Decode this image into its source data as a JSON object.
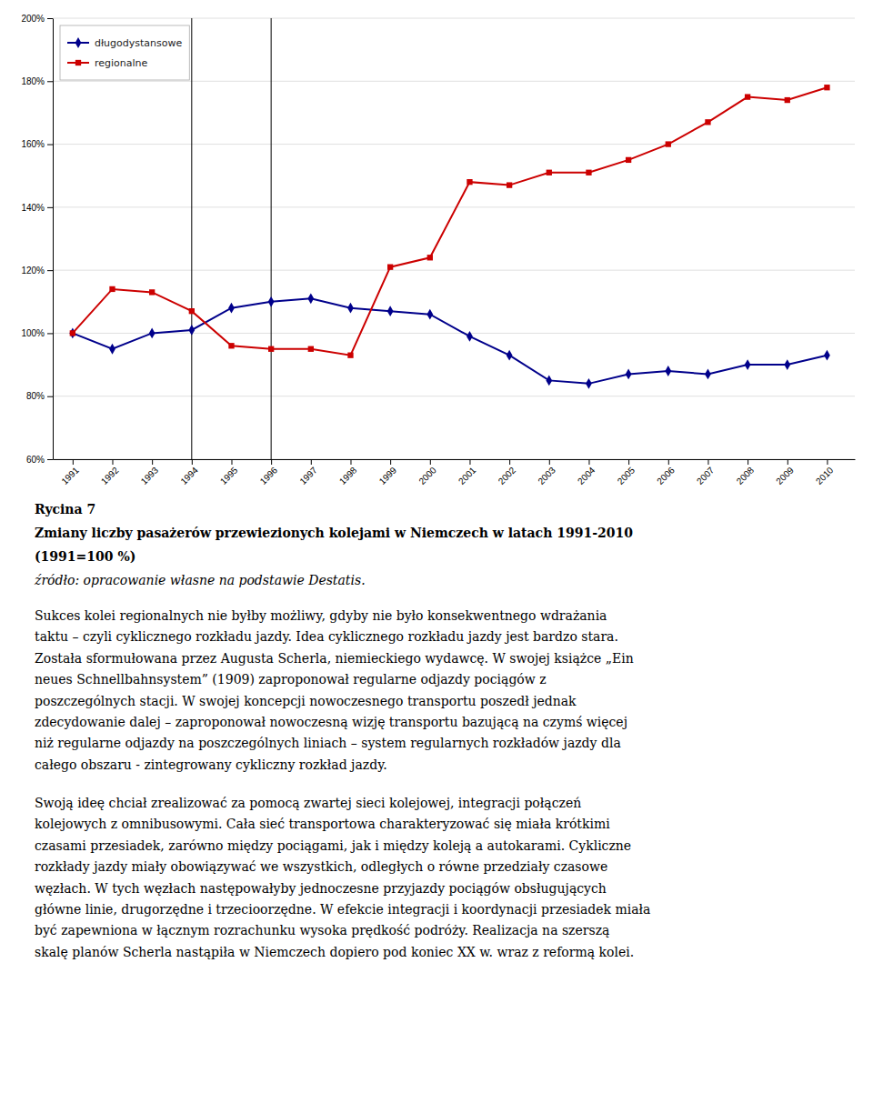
{
  "chart_data": {
    "type": "line",
    "title": "Rycina 7",
    "subtitle": [
      "Zmiany liczby pasażerów przewiezionych kolejami w Niemczech w latach 1991-2010",
      "(1991=100 %)"
    ],
    "x": [
      1991,
      1992,
      1993,
      1994,
      1995,
      1996,
      1997,
      1998,
      1999,
      2000,
      2001,
      2002,
      2003,
      2004,
      2005,
      2006,
      2007,
      2008,
      2009,
      2010
    ],
    "series": [
      {
        "name": "długodystansowe",
        "color": "#00008B",
        "marker": "diamond",
        "values": [
          100,
          95,
          100,
          101,
          108,
          110,
          111,
          108,
          107,
          106,
          99,
          93,
          85,
          84,
          87,
          88,
          87,
          90,
          90,
          93
        ]
      },
      {
        "name": "regionalne",
        "color": "#CC0000",
        "marker": "square",
        "values": [
          100,
          114,
          113,
          107,
          96,
          95,
          95,
          93,
          121,
          124,
          148,
          147,
          151,
          151,
          155,
          160,
          167,
          175,
          174,
          178
        ]
      }
    ],
    "vlines": [
      1994,
      1996
    ],
    "xlim": [
      1990.5,
      2010.7
    ],
    "xticks": [
      1991,
      1992,
      1993,
      1994,
      1995,
      1996,
      1997,
      1998,
      1999,
      2000,
      2001,
      2002,
      2003,
      2004,
      2005,
      2006,
      2007,
      2008,
      2009,
      2010
    ],
    "ylim": [
      60,
      200
    ],
    "yticks": [
      {
        "value": 60,
        "label": "60%"
      },
      {
        "value": 80,
        "label": "80%"
      },
      {
        "value": 100,
        "label": "100%"
      },
      {
        "value": 120,
        "label": "120%"
      },
      {
        "value": 140,
        "label": "140%"
      },
      {
        "value": 160,
        "label": "160%"
      },
      {
        "value": 180,
        "label": "180%"
      },
      {
        "value": 200,
        "label": "200%"
      }
    ],
    "grid": true,
    "legend": "upper left",
    "annotations": [
      [
        "źródło: opracowanie własne na podstawie Destatis."
      ],
      [
        "Sukces kolei regionalnych nie byłby możliwy, gdyby nie było konsekwentnego wdrażania",
        "taktu – czyli cyklicznego rozkładu jazdy. Idea cyklicznego rozkładu jazdy jest bardzo stara.",
        "Została sformułowana przez Augusta Scherla, niemieckiego wydawcę. W swojej książce „Ein",
        "neues Schnellbahnsystem” (1909) zaproponował regularne odjazdy pociągów z",
        "poszczególnych stacji. W swojej koncepcji nowoczesnego transportu poszedł jednak",
        "zdecydowanie dalej – zaproponował nowoczesną wizję transportu bazującą na czymś więcej",
        "niż regularne odjazdy na poszczególnych liniach – system regularnych rozkładów jazdy dla",
        "całego obszaru - zintegrowany cykliczny rozkład jazdy."
      ],
      [
        "Swoją ideę chciał zrealizować za pomocą zwartej sieci kolejowej, integracji połączeń",
        "kolejowych z omnibusowymi. Cała sieć transportowa charakteryzować się miała krótkimi",
        "czasami przesiadek, zarówno między pociągami, jak i między koleją a autokarami. Cykliczne",
        "rozkłady jazdy miały obowiązywać we wszystkich, odległych o równe przedziały czasowe",
        "węzłach. W tych węzłach następowałyby jednoczesne przyjazdy pociągów obsługujących",
        "główne linie, drugorzędne i trzecioorzędne. W efekcie integracji i koordynacji przesiadek miała",
        "być zapewniona w łącznym rozrachunku wysoka prędkość podróży. Realizacja na szerszą",
        "skalę planów Scherla nastąpiła w Niemczech dopiero pod koniec XX w. wraz z reformą kolei."
      ]
    ]
  }
}
